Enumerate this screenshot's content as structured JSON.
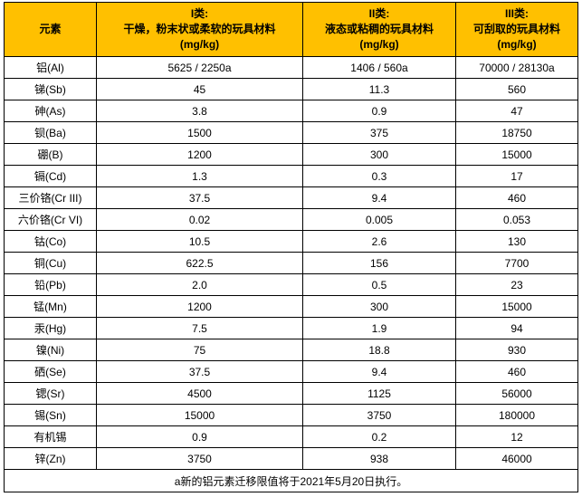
{
  "table": {
    "header": {
      "element_col": "元素",
      "class1": {
        "line1": "I类:",
        "line2": "干燥，粉末状或柔软的玩具材料",
        "line3": "(mg/kg)"
      },
      "class2": {
        "line1": "II类:",
        "line2": "液态或粘稠的玩具材料",
        "line3": "(mg/kg)"
      },
      "class3": {
        "line1": "III类:",
        "line2": "可刮取的玩具材料",
        "line3": "(mg/kg)"
      }
    },
    "rows": [
      {
        "element": "铝(Al)",
        "class1": "5625 / 2250a",
        "class2": "1406 / 560a",
        "class3": "70000 / 28130a"
      },
      {
        "element": "锑(Sb)",
        "class1": "45",
        "class2": "11.3",
        "class3": "560"
      },
      {
        "element": "砷(As)",
        "class1": "3.8",
        "class2": "0.9",
        "class3": "47"
      },
      {
        "element": "钡(Ba)",
        "class1": "1500",
        "class2": "375",
        "class3": "18750"
      },
      {
        "element": "硼(B)",
        "class1": "1200",
        "class2": "300",
        "class3": "15000"
      },
      {
        "element": "镉(Cd)",
        "class1": "1.3",
        "class2": "0.3",
        "class3": "17"
      },
      {
        "element": "三价铬(Cr III)",
        "class1": "37.5",
        "class2": "9.4",
        "class3": "460"
      },
      {
        "element": "六价铬(Cr VI)",
        "class1": "0.02",
        "class2": "0.005",
        "class3": "0.053"
      },
      {
        "element": "钴(Co)",
        "class1": "10.5",
        "class2": "2.6",
        "class3": "130"
      },
      {
        "element": "铜(Cu)",
        "class1": "622.5",
        "class2": "156",
        "class3": "7700"
      },
      {
        "element": "铅(Pb)",
        "class1": "2.0",
        "class2": "0.5",
        "class3": "23"
      },
      {
        "element": "锰(Mn)",
        "class1": "1200",
        "class2": "300",
        "class3": "15000"
      },
      {
        "element": "汞(Hg)",
        "class1": "7.5",
        "class2": "1.9",
        "class3": "94"
      },
      {
        "element": "镍(Ni)",
        "class1": "75",
        "class2": "18.8",
        "class3": "930"
      },
      {
        "element": "硒(Se)",
        "class1": "37.5",
        "class2": "9.4",
        "class3": "460"
      },
      {
        "element": "锶(Sr)",
        "class1": "4500",
        "class2": "1125",
        "class3": "56000"
      },
      {
        "element": "锡(Sn)",
        "class1": "15000",
        "class2": "3750",
        "class3": "180000"
      },
      {
        "element": "有机锡",
        "class1": "0.9",
        "class2": "0.2",
        "class3": "12"
      },
      {
        "element": "锌(Zn)",
        "class1": "3750",
        "class2": "938",
        "class3": "46000"
      }
    ],
    "footnote": "a新的铝元素迁移限值将于2021年5月20日执行。"
  },
  "colors": {
    "header_bg": "#FFC000",
    "border": "#000000",
    "text": "#000000",
    "background": "#FFFFFF"
  }
}
